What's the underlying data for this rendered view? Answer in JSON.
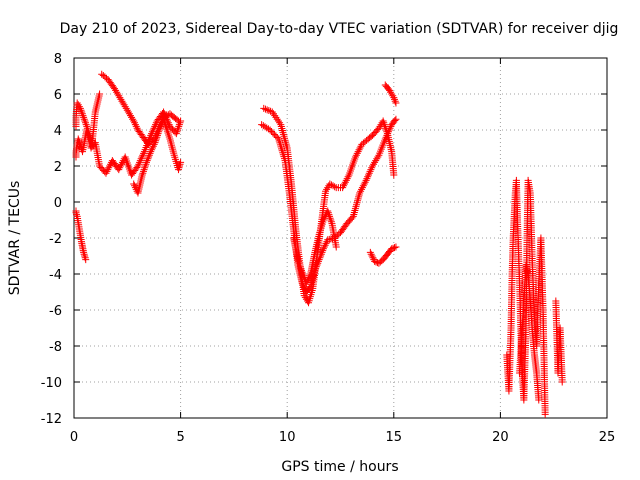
{
  "chart_data": {
    "type": "scatter",
    "title": "Day 210 of 2023, Sidereal Day-to-day VTEC variation (SDTVAR) for receiver djig",
    "xlabel": "GPS time / hours",
    "ylabel": "SDTVAR / TECUs",
    "xlim": [
      0,
      25
    ],
    "ylim": [
      -12,
      8
    ],
    "xticks": [
      0,
      5,
      10,
      15,
      20,
      25
    ],
    "yticks": [
      -12,
      -10,
      -8,
      -6,
      -4,
      -2,
      0,
      2,
      4,
      6,
      8
    ],
    "grid": true,
    "marker": "plus",
    "color": "#ff0000",
    "series": [
      {
        "x": [
          1.3,
          1.6,
          1.9,
          2.2,
          2.5,
          2.8,
          3.0,
          3.3,
          3.5,
          3.8,
          4.0,
          4.2,
          4.5,
          4.7,
          4.9
        ],
        "y": [
          7.1,
          6.8,
          6.3,
          5.7,
          5.1,
          4.5,
          4.0,
          3.5,
          3.2,
          3.6,
          4.2,
          4.7,
          4.9,
          4.7,
          4.5
        ]
      },
      {
        "x": [
          0.05,
          0.2,
          0.4,
          0.6,
          0.8,
          1.0,
          1.2,
          1.5,
          1.8,
          2.1,
          2.4,
          2.7,
          3.0,
          3.3,
          3.6,
          3.9,
          4.2,
          4.5,
          4.8,
          5.0
        ],
        "y": [
          2.5,
          3.5,
          2.8,
          4.0,
          3.0,
          3.3,
          2.0,
          1.6,
          2.3,
          1.8,
          2.5,
          1.5,
          2.0,
          2.8,
          3.7,
          4.5,
          5.0,
          4.2,
          3.8,
          4.5
        ]
      },
      {
        "x": [
          0.05,
          0.15,
          0.3,
          0.45,
          0.6,
          0.7,
          0.85,
          1.0,
          1.2
        ],
        "y": [
          4.2,
          5.5,
          5.2,
          4.7,
          4.2,
          3.8,
          3.3,
          5.0,
          6.0
        ]
      },
      {
        "x": [
          0.05,
          0.15,
          0.25,
          0.35,
          0.45,
          0.55
        ],
        "y": [
          -0.5,
          -0.8,
          -1.5,
          -2.2,
          -2.8,
          -3.2
        ]
      },
      {
        "x": [
          2.8,
          3.0,
          3.2,
          3.4,
          3.6,
          3.8,
          4.0,
          4.2,
          4.5,
          4.7,
          4.9,
          5.0
        ],
        "y": [
          1.0,
          0.5,
          1.5,
          2.2,
          2.8,
          3.3,
          4.0,
          4.6,
          3.5,
          2.6,
          1.8,
          2.2
        ]
      },
      {
        "x": [
          8.8,
          9.2,
          9.6,
          9.9,
          10.1,
          10.3,
          10.5,
          10.7,
          10.9,
          11.1,
          11.3,
          11.5,
          11.7,
          11.9,
          12.2,
          12.5,
          12.8,
          13.1,
          13.4,
          13.7,
          14.0,
          14.3,
          14.6,
          14.9,
          15.1
        ],
        "y": [
          4.3,
          4.0,
          3.5,
          2.3,
          0.5,
          -1.5,
          -3.5,
          -4.5,
          -5.0,
          -4.7,
          -3.8,
          -3.2,
          -2.6,
          -2.1,
          -2.0,
          -1.7,
          -1.2,
          -0.8,
          0.5,
          1.2,
          2.0,
          2.6,
          3.5,
          4.3,
          4.6
        ]
      },
      {
        "x": [
          8.9,
          9.3,
          9.7,
          10.0,
          10.2,
          10.4,
          10.6,
          10.8,
          11.0,
          11.2,
          11.4,
          11.6,
          11.8,
          12.0,
          12.3,
          12.6,
          12.9,
          13.2,
          13.5,
          13.8,
          14.0,
          14.3,
          14.5,
          14.7,
          14.9,
          15.0
        ],
        "y": [
          5.2,
          5.0,
          4.3,
          3.0,
          1.0,
          -1.5,
          -3.5,
          -5.2,
          -5.6,
          -4.8,
          -3.0,
          -1.2,
          0.6,
          1.0,
          0.8,
          0.8,
          1.5,
          2.5,
          3.2,
          3.5,
          3.7,
          4.1,
          4.5,
          3.8,
          2.8,
          1.5
        ]
      },
      {
        "x": [
          10.3,
          10.5,
          10.7,
          10.9,
          11.1,
          11.3,
          11.5,
          11.7,
          11.9,
          12.1,
          12.3
        ],
        "y": [
          -2.0,
          -3.2,
          -3.9,
          -4.5,
          -4.0,
          -2.8,
          -1.8,
          -1.0,
          -0.5,
          -1.2,
          -2.5
        ]
      },
      {
        "x": [
          13.9,
          14.1,
          14.3,
          14.5,
          14.7,
          14.9,
          15.1
        ],
        "y": [
          -2.8,
          -3.3,
          -3.4,
          -3.2,
          -2.9,
          -2.6,
          -2.5
        ]
      },
      {
        "x": [
          14.6,
          14.8,
          15.0,
          15.1
        ],
        "y": [
          6.5,
          6.2,
          5.8,
          5.5
        ]
      },
      {
        "x": [
          20.3,
          20.4,
          20.5,
          20.55,
          20.6,
          20.7,
          20.75,
          20.8,
          20.9,
          21.0,
          21.1,
          21.2,
          21.25,
          21.3,
          21.4,
          21.5,
          21.6,
          21.7,
          21.8,
          21.9,
          22.0,
          22.1
        ],
        "y": [
          -8.5,
          -10.5,
          -7.0,
          -4.0,
          -2.0,
          0.5,
          1.2,
          -1.0,
          -4.5,
          -9.0,
          -11.0,
          -7.0,
          -2.0,
          1.2,
          0.5,
          -3.5,
          -6.5,
          -8.0,
          -4.5,
          -2.0,
          -6.0,
          -11.8
        ]
      },
      {
        "x": [
          20.9,
          21.0,
          21.1,
          21.2,
          21.3,
          21.4,
          21.5,
          21.6,
          21.7,
          21.8
        ],
        "y": [
          -9.5,
          -7.5,
          -5.5,
          -3.5,
          -4.0,
          -5.5,
          -7.2,
          -8.5,
          -9.5,
          -11.0
        ]
      },
      {
        "x": [
          22.6,
          22.7,
          22.8,
          22.9
        ],
        "y": [
          -5.5,
          -9.5,
          -7.0,
          -10.0
        ]
      }
    ]
  }
}
